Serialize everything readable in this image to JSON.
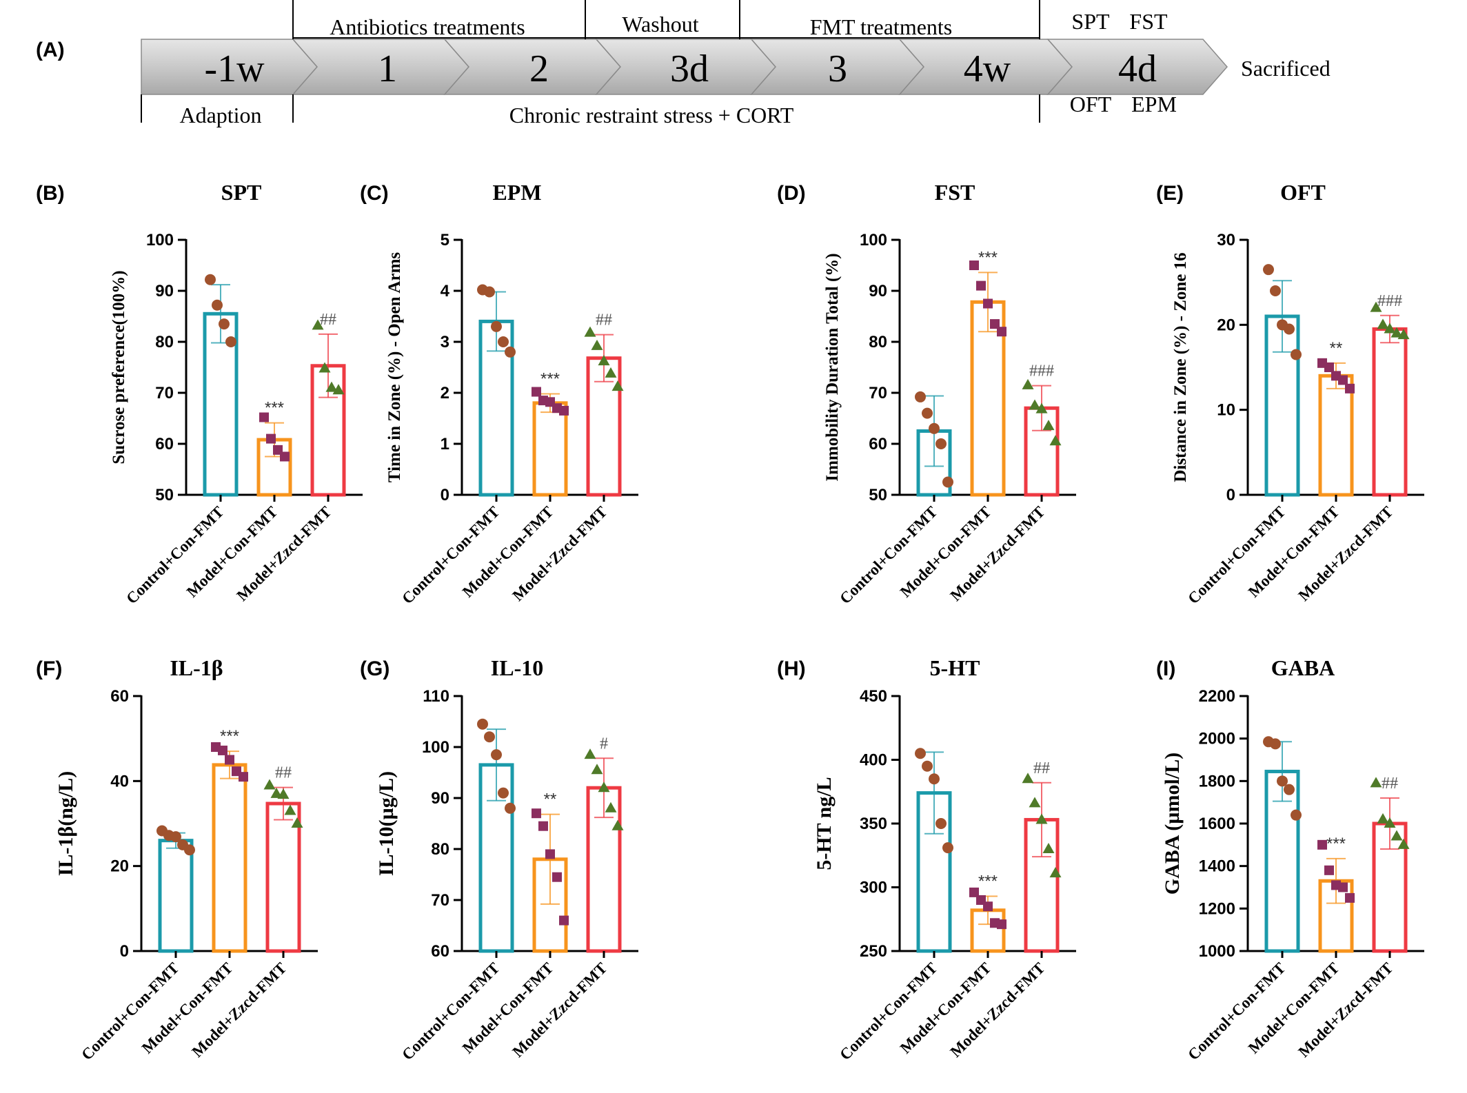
{
  "timeline": {
    "panel_label": "(A)",
    "segments": [
      "-1w",
      "1",
      "2",
      "3d",
      "3",
      "4w",
      "4d"
    ],
    "top_labels": [
      "Antibiotics treatments",
      "Washout",
      "FMT treatments"
    ],
    "top_tests": [
      "SPT",
      "FST"
    ],
    "bottom_tests": [
      "OFT",
      "EPM"
    ],
    "bottom_labels": [
      "Adaption",
      "Chronic restraint stress + CORT"
    ],
    "end_label": "Sacrificed",
    "end_color": "#e8201f"
  },
  "colors": {
    "groups": [
      "#1b9aaa",
      "#f7941d",
      "#ee3a43"
    ],
    "points": [
      "#a0522d",
      "#8b2e5f",
      "#4f7a28"
    ],
    "axis": "#000000"
  },
  "chart_data": [
    {
      "panel": "(B)",
      "type": "bar",
      "title": "SPT",
      "ylabel": "Sucrose preference(100%)",
      "ylim": [
        50,
        100
      ],
      "yticks": [
        50,
        60,
        70,
        80,
        90,
        100
      ],
      "categories": [
        "Control+Con-FMT",
        "Model+Con-FMT",
        "Model+Zzcd-FMT"
      ],
      "values": [
        85.5,
        60.8,
        75.3
      ],
      "errors": [
        5.7,
        3.3,
        6.2
      ],
      "points": [
        [
          92.2,
          87.2,
          83.5,
          80.0
        ],
        [
          65.2,
          61.0,
          58.8,
          57.5
        ],
        [
          83.2,
          74.8,
          71.0,
          70.5
        ]
      ],
      "annotations": [
        "",
        "***",
        "##"
      ]
    },
    {
      "panel": "(C)",
      "type": "bar",
      "title": "EPM",
      "ylabel": "Time in Zone (%) - Open Arms",
      "ylim": [
        0,
        5
      ],
      "yticks": [
        0,
        1,
        2,
        3,
        4,
        5
      ],
      "categories": [
        "Control+Con-FMT",
        "Model+Con-FMT",
        "Model+Zzcd-FMT"
      ],
      "values": [
        3.4,
        1.8,
        2.68
      ],
      "errors": [
        0.58,
        0.18,
        0.46
      ],
      "points": [
        [
          4.02,
          3.98,
          3.3,
          3.0,
          2.8
        ],
        [
          2.02,
          1.85,
          1.82,
          1.7,
          1.65
        ],
        [
          3.18,
          2.92,
          2.62,
          2.38,
          2.12
        ]
      ],
      "annotations": [
        "",
        "***",
        "##"
      ]
    },
    {
      "panel": "(D)",
      "type": "bar",
      "title": "FST",
      "ylabel": "Immobility Duration Total (%)",
      "ylim": [
        50,
        100
      ],
      "yticks": [
        50,
        60,
        70,
        80,
        90,
        100
      ],
      "categories": [
        "Control+Con-FMT",
        "Model+Con-FMT",
        "Model+Zzcd-FMT"
      ],
      "values": [
        62.5,
        87.8,
        67.0
      ],
      "errors": [
        6.9,
        5.8,
        4.4
      ],
      "points": [
        [
          69.2,
          66.0,
          63.0,
          60.0,
          52.5
        ],
        [
          95.0,
          91.0,
          87.5,
          83.5,
          82.0
        ],
        [
          71.5,
          67.5,
          66.8,
          63.5,
          60.5
        ]
      ],
      "annotations": [
        "",
        "***",
        "###"
      ]
    },
    {
      "panel": "(E)",
      "type": "bar",
      "title": "OFT",
      "ylabel": "Distance in Zone (%) - Zone 16",
      "ylim": [
        0,
        30
      ],
      "yticks": [
        0,
        10,
        20,
        30
      ],
      "categories": [
        "Control+Con-FMT",
        "Model+Con-FMT",
        "Model+Zzcd-FMT"
      ],
      "values": [
        21.0,
        14.0,
        19.5
      ],
      "errors": [
        4.2,
        1.5,
        1.6
      ],
      "points": [
        [
          26.5,
          24.0,
          20.0,
          19.5,
          16.5
        ],
        [
          15.5,
          15.0,
          14.0,
          13.5,
          12.5
        ],
        [
          22.0,
          20.0,
          19.5,
          19.0,
          18.8
        ]
      ],
      "annotations": [
        "",
        "**",
        "###"
      ]
    },
    {
      "panel": "(F)",
      "type": "bar",
      "title": "IL-1β",
      "ylabel": "IL-1β(ng/L)",
      "ylim": [
        0,
        60
      ],
      "yticks": [
        0,
        20,
        40,
        60
      ],
      "categories": [
        "Control+Con-FMT",
        "Model+Con-FMT",
        "Model+Zzcd-FMT"
      ],
      "values": [
        26.0,
        43.8,
        34.7
      ],
      "errors": [
        1.8,
        3.2,
        3.8
      ],
      "points": [
        [
          28.3,
          27.2,
          26.9,
          25.0,
          23.8
        ],
        [
          48.0,
          47.2,
          45.0,
          42.3,
          41.0
        ],
        [
          39.0,
          37.0,
          36.8,
          33.0,
          30.0
        ]
      ],
      "annotations": [
        "",
        "***",
        "##"
      ]
    },
    {
      "panel": "(G)",
      "type": "bar",
      "title": "IL-10",
      "ylabel": "IL-10(µg/L)",
      "ylim": [
        60,
        110
      ],
      "yticks": [
        60,
        70,
        80,
        90,
        100,
        110
      ],
      "categories": [
        "Control+Con-FMT",
        "Model+Con-FMT",
        "Model+Zzcd-FMT"
      ],
      "values": [
        96.5,
        78.0,
        92.0
      ],
      "errors": [
        7.0,
        8.8,
        5.8
      ],
      "points": [
        [
          104.5,
          102.0,
          98.5,
          91.0,
          88.0
        ],
        [
          87.0,
          84.5,
          79.0,
          74.5,
          66.0
        ],
        [
          98.5,
          95.5,
          92.0,
          88.0,
          84.5
        ]
      ],
      "annotations": [
        "",
        "**",
        "#"
      ]
    },
    {
      "panel": "(H)",
      "type": "bar",
      "title": "5-HT",
      "ylabel": "5-HT ng/L",
      "ylim": [
        250,
        450
      ],
      "yticks": [
        250,
        300,
        350,
        400,
        450
      ],
      "categories": [
        "Control+Con-FMT",
        "Model+Con-FMT",
        "Model+Zzcd-FMT"
      ],
      "values": [
        374,
        282,
        353
      ],
      "errors": [
        32,
        11,
        29
      ],
      "points": [
        [
          405,
          395,
          385,
          350,
          331
        ],
        [
          296,
          290,
          285,
          272,
          271
        ],
        [
          385,
          366,
          353,
          330,
          311
        ]
      ],
      "annotations": [
        "",
        "***",
        "##"
      ]
    },
    {
      "panel": "(I)",
      "type": "bar",
      "title": "GABA",
      "ylabel": "GABA (µmol/L)",
      "ylim": [
        1000,
        2200
      ],
      "yticks": [
        1000,
        1200,
        1400,
        1600,
        1800,
        2000,
        2200
      ],
      "categories": [
        "Control+Con-FMT",
        "Model+Con-FMT",
        "Model+Zzcd-FMT"
      ],
      "values": [
        1845,
        1330,
        1600
      ],
      "errors": [
        140,
        105,
        120
      ],
      "points": [
        [
          1985,
          1975,
          1800,
          1760,
          1640
        ],
        [
          1500,
          1380,
          1310,
          1300,
          1250
        ],
        [
          1790,
          1620,
          1600,
          1540,
          1500
        ]
      ],
      "annotations": [
        "",
        "***",
        "##"
      ]
    }
  ]
}
